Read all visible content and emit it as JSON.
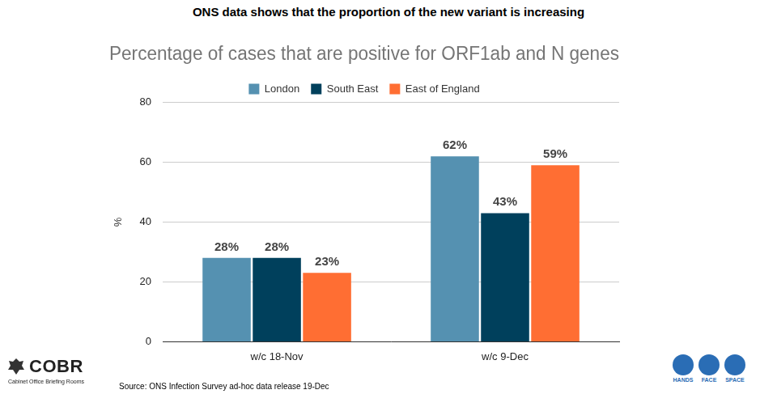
{
  "heading": "ONS data shows that the proportion of the new variant is increasing",
  "source": "Source: ONS Infection Survey ad-hoc data release 19-Dec",
  "logo": {
    "name": "COBR",
    "subtitle": "Cabinet Office Briefing Rooms"
  },
  "badges": [
    "HANDS",
    "FACE",
    "SPACE"
  ],
  "chart_data": {
    "type": "bar",
    "title": "Percentage of cases that are positive for ORF1ab and N genes",
    "y_label": "%",
    "categories": [
      "w/c 18-Nov",
      "w/c 9-Dec"
    ],
    "series": [
      {
        "name": "London",
        "color": "#5591b1",
        "values": [
          28,
          62
        ],
        "value_labels": [
          "28%",
          "62%"
        ]
      },
      {
        "name": "South East",
        "color": "#00405c",
        "values": [
          28,
          43
        ],
        "value_labels": [
          "28%",
          "43%"
        ]
      },
      {
        "name": "East of England",
        "color": "#ff6e33",
        "values": [
          23,
          59
        ],
        "value_labels": [
          "23%",
          "59%"
        ]
      }
    ],
    "ylim": [
      0,
      80
    ],
    "yticks": [
      0,
      20,
      40,
      60,
      80
    ],
    "grid": true,
    "legend": "top",
    "data_labels": true
  }
}
